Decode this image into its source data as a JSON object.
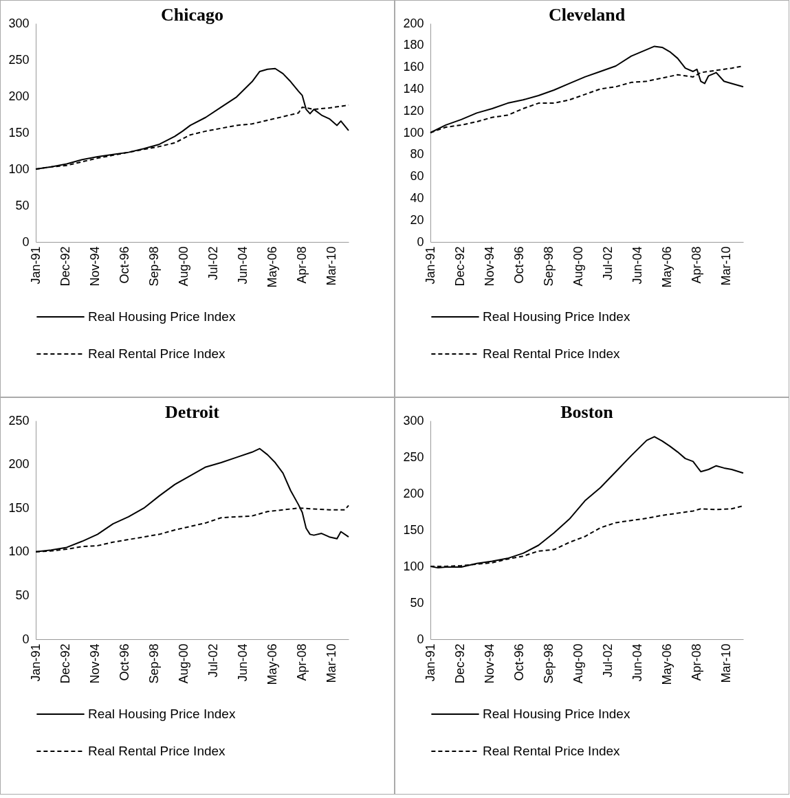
{
  "chart_data": [
    {
      "type": "line",
      "title": "Chicago",
      "legend": "bottom",
      "xlim": [
        "1991-01",
        "2011-04"
      ],
      "ylim": [
        0,
        300
      ],
      "yticks": [
        0,
        50,
        100,
        150,
        200,
        250,
        300
      ],
      "xticks": [
        {
          "value": "1991-01",
          "label": "Jan-91"
        },
        {
          "value": "1992-12",
          "label": "Dec-92"
        },
        {
          "value": "1994-11",
          "label": "Nov-94"
        },
        {
          "value": "1996-10",
          "label": "Oct-96"
        },
        {
          "value": "1998-09",
          "label": "Sep-98"
        },
        {
          "value": "2000-08",
          "label": "Aug-00"
        },
        {
          "value": "2002-07",
          "label": "Jul-02"
        },
        {
          "value": "2004-06",
          "label": "Jun-04"
        },
        {
          "value": "2006-05",
          "label": "May-06"
        },
        {
          "value": "2008-04",
          "label": "Apr-08"
        },
        {
          "value": "2010-03",
          "label": "Mar-10"
        }
      ],
      "series": [
        {
          "name": "Real Housing Price Index",
          "color": "#000000",
          "line_style": "solid",
          "x": [
            "1991-01",
            "1992-01",
            "1993-01",
            "1994-01",
            "1995-01",
            "1996-01",
            "1997-01",
            "1998-01",
            "1999-01",
            "2000-01",
            "2000-07",
            "2001-01",
            "2002-01",
            "2003-01",
            "2004-01",
            "2005-01",
            "2005-07",
            "2006-01",
            "2006-07",
            "2007-01",
            "2007-07",
            "2008-01",
            "2008-04",
            "2008-07",
            "2008-10",
            "2009-01",
            "2009-07",
            "2010-01",
            "2010-07",
            "2010-10",
            "2011-04"
          ],
          "values": [
            100,
            103,
            107,
            113,
            117,
            120,
            123,
            128,
            134,
            145,
            152,
            160,
            171,
            185,
            199,
            220,
            234,
            237,
            238,
            231,
            220,
            207,
            201,
            182,
            176,
            182,
            174,
            169,
            160,
            166,
            153
          ]
        },
        {
          "name": "Real Rental Price Index",
          "color": "#000000",
          "line_style": "dashed",
          "x": [
            "1991-01",
            "1992-01",
            "1993-01",
            "1994-01",
            "1995-01",
            "1996-01",
            "1997-01",
            "1998-01",
            "1999-01",
            "2000-01",
            "2001-01",
            "2002-01",
            "2003-01",
            "2004-01",
            "2005-01",
            "2006-01",
            "2007-01",
            "2008-01",
            "2008-04",
            "2009-01",
            "2010-01",
            "2011-01",
            "2011-04"
          ],
          "values": [
            100,
            103,
            105,
            110,
            115,
            119,
            123,
            127,
            131,
            136,
            147,
            152,
            156,
            160,
            162,
            167,
            172,
            177,
            185,
            182,
            184,
            187,
            188
          ]
        }
      ]
    },
    {
      "type": "line",
      "title": "Cleveland",
      "legend": "bottom",
      "xlim": [
        "1991-01",
        "2011-04"
      ],
      "ylim": [
        0,
        200
      ],
      "yticks": [
        0,
        20,
        40,
        60,
        80,
        100,
        120,
        140,
        160,
        180,
        200
      ],
      "xticks": [
        {
          "value": "1991-01",
          "label": "Jan-91"
        },
        {
          "value": "1992-12",
          "label": "Dec-92"
        },
        {
          "value": "1994-11",
          "label": "Nov-94"
        },
        {
          "value": "1996-10",
          "label": "Oct-96"
        },
        {
          "value": "1998-09",
          "label": "Sep-98"
        },
        {
          "value": "2000-08",
          "label": "Aug-00"
        },
        {
          "value": "2002-07",
          "label": "Jul-02"
        },
        {
          "value": "2004-06",
          "label": "Jun-04"
        },
        {
          "value": "2006-05",
          "label": "May-06"
        },
        {
          "value": "2008-04",
          "label": "Apr-08"
        },
        {
          "value": "2010-03",
          "label": "Mar-10"
        }
      ],
      "series": [
        {
          "name": "Real Housing Price Index",
          "color": "#000000",
          "line_style": "solid",
          "x": [
            "1991-01",
            "1992-01",
            "1993-01",
            "1994-01",
            "1995-01",
            "1996-01",
            "1997-01",
            "1998-01",
            "1999-01",
            "2000-01",
            "2001-01",
            "2002-01",
            "2003-01",
            "2004-01",
            "2005-01",
            "2005-07",
            "2006-01",
            "2006-07",
            "2007-01",
            "2007-07",
            "2008-01",
            "2008-04",
            "2008-07",
            "2008-10",
            "2009-01",
            "2009-07",
            "2010-01",
            "2010-07",
            "2011-04"
          ],
          "values": [
            100,
            107,
            112,
            118,
            122,
            127,
            130,
            134,
            139,
            145,
            151,
            156,
            161,
            170,
            176,
            179,
            178,
            174,
            168,
            159,
            156,
            158,
            147,
            145,
            152,
            155,
            147,
            145,
            142
          ]
        },
        {
          "name": "Real Rental Price Index",
          "color": "#000000",
          "line_style": "dashed",
          "x": [
            "1991-01",
            "1992-01",
            "1993-01",
            "1994-01",
            "1995-01",
            "1996-01",
            "1997-01",
            "1998-01",
            "1999-01",
            "2000-01",
            "2001-01",
            "2002-01",
            "2003-01",
            "2004-01",
            "2005-01",
            "2006-01",
            "2007-01",
            "2008-01",
            "2008-07",
            "2009-07",
            "2010-07",
            "2011-04"
          ],
          "values": [
            100,
            105,
            107,
            110,
            114,
            116,
            122,
            127,
            127,
            130,
            135,
            140,
            142,
            146,
            147,
            150,
            153,
            151,
            155,
            157,
            159,
            161
          ]
        }
      ]
    },
    {
      "type": "line",
      "title": "Detroit",
      "legend": "bottom",
      "xlim": [
        "1991-01",
        "2011-04"
      ],
      "ylim": [
        0,
        250
      ],
      "yticks": [
        0,
        50,
        100,
        150,
        200,
        250
      ],
      "xticks": [
        {
          "value": "1991-01",
          "label": "Jan-91"
        },
        {
          "value": "1992-12",
          "label": "Dec-92"
        },
        {
          "value": "1994-11",
          "label": "Nov-94"
        },
        {
          "value": "1996-10",
          "label": "Oct-96"
        },
        {
          "value": "1998-09",
          "label": "Sep-98"
        },
        {
          "value": "2000-08",
          "label": "Aug-00"
        },
        {
          "value": "2002-07",
          "label": "Jul-02"
        },
        {
          "value": "2004-06",
          "label": "Jun-04"
        },
        {
          "value": "2006-05",
          "label": "May-06"
        },
        {
          "value": "2008-04",
          "label": "Apr-08"
        },
        {
          "value": "2010-03",
          "label": "Mar-10"
        }
      ],
      "series": [
        {
          "name": "Real Housing Price Index",
          "color": "#000000",
          "line_style": "solid",
          "x": [
            "1991-01",
            "1992-01",
            "1993-01",
            "1994-01",
            "1995-01",
            "1996-01",
            "1997-01",
            "1998-01",
            "1999-01",
            "2000-01",
            "2001-01",
            "2002-01",
            "2003-01",
            "2004-01",
            "2005-01",
            "2005-07",
            "2006-01",
            "2006-07",
            "2007-01",
            "2007-07",
            "2008-01",
            "2008-04",
            "2008-07",
            "2008-10",
            "2009-01",
            "2009-07",
            "2010-01",
            "2010-07",
            "2010-10",
            "2011-04"
          ],
          "values": [
            100,
            102,
            105,
            112,
            120,
            132,
            140,
            150,
            164,
            177,
            187,
            197,
            202,
            208,
            214,
            218,
            211,
            202,
            190,
            170,
            154,
            145,
            127,
            120,
            119,
            121,
            117,
            115,
            123,
            117
          ]
        },
        {
          "name": "Real Rental Price Index",
          "color": "#000000",
          "line_style": "dashed",
          "x": [
            "1991-01",
            "1992-01",
            "1993-01",
            "1994-01",
            "1995-01",
            "1996-01",
            "1997-01",
            "1998-01",
            "1999-01",
            "2000-01",
            "2001-01",
            "2002-01",
            "2003-01",
            "2004-01",
            "2005-01",
            "2006-01",
            "2007-01",
            "2008-01",
            "2009-01",
            "2010-01",
            "2011-01",
            "2011-04"
          ],
          "values": [
            100,
            101,
            103,
            106,
            107,
            111,
            114,
            117,
            120,
            125,
            129,
            133,
            139,
            140,
            141,
            146,
            148,
            150,
            149,
            148,
            148,
            153
          ]
        }
      ]
    },
    {
      "type": "line",
      "title": "Boston",
      "legend": "bottom",
      "xlim": [
        "1991-01",
        "2011-04"
      ],
      "ylim": [
        0,
        300
      ],
      "yticks": [
        0,
        50,
        100,
        150,
        200,
        250,
        300
      ],
      "xticks": [
        {
          "value": "1991-01",
          "label": "Jan-91"
        },
        {
          "value": "1992-12",
          "label": "Dec-92"
        },
        {
          "value": "1994-11",
          "label": "Nov-94"
        },
        {
          "value": "1996-10",
          "label": "Oct-96"
        },
        {
          "value": "1998-09",
          "label": "Sep-98"
        },
        {
          "value": "2000-08",
          "label": "Aug-00"
        },
        {
          "value": "2002-07",
          "label": "Jul-02"
        },
        {
          "value": "2004-06",
          "label": "Jun-04"
        },
        {
          "value": "2006-05",
          "label": "May-06"
        },
        {
          "value": "2008-04",
          "label": "Apr-08"
        },
        {
          "value": "2010-03",
          "label": "Mar-10"
        }
      ],
      "series": [
        {
          "name": "Real Housing Price Index",
          "color": "#000000",
          "line_style": "solid",
          "x": [
            "1991-01",
            "1991-07",
            "1992-01",
            "1993-01",
            "1994-01",
            "1995-01",
            "1996-01",
            "1997-01",
            "1998-01",
            "1999-01",
            "2000-01",
            "2001-01",
            "2002-01",
            "2003-01",
            "2004-01",
            "2005-01",
            "2005-07",
            "2006-01",
            "2006-07",
            "2007-01",
            "2007-07",
            "2008-01",
            "2008-07",
            "2009-01",
            "2009-07",
            "2010-01",
            "2010-07",
            "2011-04"
          ],
          "values": [
            100,
            98,
            99,
            99,
            104,
            107,
            111,
            118,
            129,
            146,
            165,
            190,
            208,
            230,
            252,
            273,
            278,
            272,
            265,
            257,
            248,
            244,
            230,
            233,
            238,
            235,
            233,
            228
          ]
        },
        {
          "name": "Real Rental Price Index",
          "color": "#000000",
          "line_style": "dashed",
          "x": [
            "1991-01",
            "1992-01",
            "1993-01",
            "1994-01",
            "1995-01",
            "1996-01",
            "1997-01",
            "1998-01",
            "1999-01",
            "2000-01",
            "2001-01",
            "2002-01",
            "2003-01",
            "2004-01",
            "2005-01",
            "2006-01",
            "2007-01",
            "2008-01",
            "2008-07",
            "2009-07",
            "2010-07",
            "2011-04"
          ],
          "values": [
            100,
            100,
            101,
            103,
            105,
            110,
            114,
            121,
            123,
            133,
            141,
            153,
            160,
            163,
            166,
            170,
            173,
            176,
            179,
            178,
            179,
            183
          ]
        }
      ]
    }
  ]
}
